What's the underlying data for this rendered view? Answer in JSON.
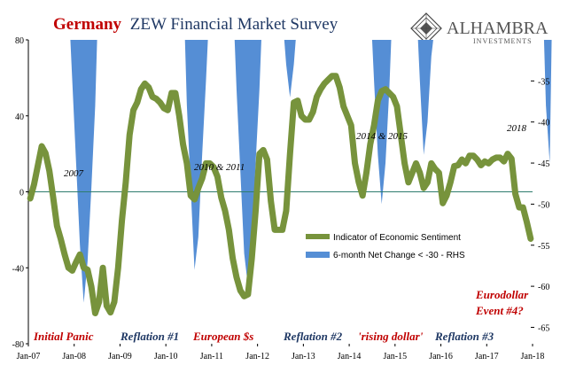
{
  "header": {
    "title_red": "Germany",
    "title_blue": "ZEW Financial Market Survey"
  },
  "logo": {
    "name": "ALHAMBRA",
    "sub": "INVESTMENTS"
  },
  "colors": {
    "sentiment": "#77933c",
    "rhs": "#558ed5",
    "red": "#c00000",
    "navy": "#1f3864",
    "zero_line": "#2e7d6e"
  },
  "legend": {
    "sentiment": "Indicator of Economic Sentiment",
    "rhs": "6-month Net Change < -30 - RHS"
  },
  "annotations": {
    "y2007": "2007",
    "y2010": "2010 & 2011",
    "y2014": "2014 & 2015",
    "y2018": "2018"
  },
  "eras": {
    "initial_panic": "Initial Panic",
    "reflation1": "Reflation #1",
    "european": "European $s",
    "reflation2": "Reflation #2",
    "rising_dollar": "'rising dollar'",
    "reflation3": "Reflation #3",
    "eurodollar1": "Eurodollar",
    "eurodollar2": "Event #4?"
  },
  "chart_data": {
    "type": "line",
    "x_start": "Jan-07",
    "x_end": "May-18",
    "x_ticks": [
      "Jan-07",
      "Jan-08",
      "Jan-09",
      "Jan-10",
      "Jan-11",
      "Jan-12",
      "Jan-13",
      "Jan-14",
      "Jan-15",
      "Jan-16",
      "Jan-17",
      "Jan-18"
    ],
    "y_ticks": [
      "80",
      "40",
      "0",
      "-40",
      "-80"
    ],
    "ylim": [
      -80,
      80
    ],
    "y2_ticks": [
      "-35",
      "-40",
      "-45",
      "-50",
      "-55",
      "-60",
      "-65"
    ],
    "y2lim": [
      -67,
      -30
    ],
    "series": [
      {
        "name": "Indicator of Economic Sentiment",
        "axis": "left",
        "values": [
          -3.5,
          4.0,
          14.0,
          24.0,
          20.3,
          11.0,
          -3.0,
          -18.0,
          -25.0,
          -33.0,
          -40.0,
          -41.5,
          -37.0,
          -33.0,
          -40.0,
          -41.0,
          -50.0,
          -63.9,
          -58.0,
          -40.0,
          -60.0,
          -63.5,
          -58.0,
          -40.0,
          -15.0,
          5.0,
          30.0,
          43.0,
          47.0,
          54.0,
          57.0,
          55.0,
          50.0,
          49.0,
          47.0,
          44.0,
          43.0,
          52.0,
          52.0,
          40.0,
          25.0,
          15.0,
          -2.0,
          -4.0,
          2.0,
          7.0,
          15.0,
          15.0,
          13.0,
          8.0,
          -3.0,
          -10.0,
          -20.0,
          -35.0,
          -45.0,
          -52.0,
          -55.0,
          -54.0,
          -35.0,
          -10.0,
          20.0,
          22.0,
          17.0,
          -5.0,
          -20.0,
          -20.0,
          -20.0,
          -10.0,
          20.0,
          47.0,
          48.0,
          40.0,
          38.0,
          38.0,
          42.0,
          50.0,
          54.0,
          57.0,
          59.0,
          61.0,
          61.0,
          55.0,
          45.0,
          40.0,
          35.0,
          15.0,
          5.0,
          -2.0,
          10.0,
          25.0,
          35.0,
          48.0,
          53.0,
          54.0,
          52.0,
          50.0,
          45.0,
          30.0,
          15.0,
          5.0,
          10.0,
          15.0,
          10.0,
          2.0,
          5.0,
          15.0,
          12.0,
          10.0,
          -6.0,
          -2.0,
          5.0,
          13.5,
          14.0,
          17.0,
          15.0,
          19.0,
          19.0,
          17.0,
          14.0,
          16.0,
          15.0,
          17.0,
          18.0,
          18.0,
          16.0,
          20.0,
          17.4,
          -1.1,
          -8.2,
          -8.2,
          -16.0,
          -24.7
        ]
      },
      {
        "name": "6-month Net Change < -30 - RHS",
        "axis": "right",
        "episodes": [
          {
            "values": [
              -35,
              -45,
              -55,
              -62,
              -57,
              -48,
              -38
            ]
          },
          {
            "values": [
              -38,
              -48,
              -58,
              -54,
              -44,
              -35
            ]
          },
          {
            "values": [
              -36,
              -46,
              -56,
              -60,
              -55,
              -45,
              -36
            ]
          },
          {
            "values": [
              -33,
              -37,
              -33
            ]
          },
          {
            "values": [
              -35,
              -44,
              -50,
              -45,
              -36
            ]
          },
          {
            "values": [
              -35,
              -44,
              -40,
              -32
            ]
          },
          {
            "values": [
              -38,
              -45
            ]
          }
        ]
      }
    ],
    "legend_position": "center-right",
    "grid": false
  }
}
